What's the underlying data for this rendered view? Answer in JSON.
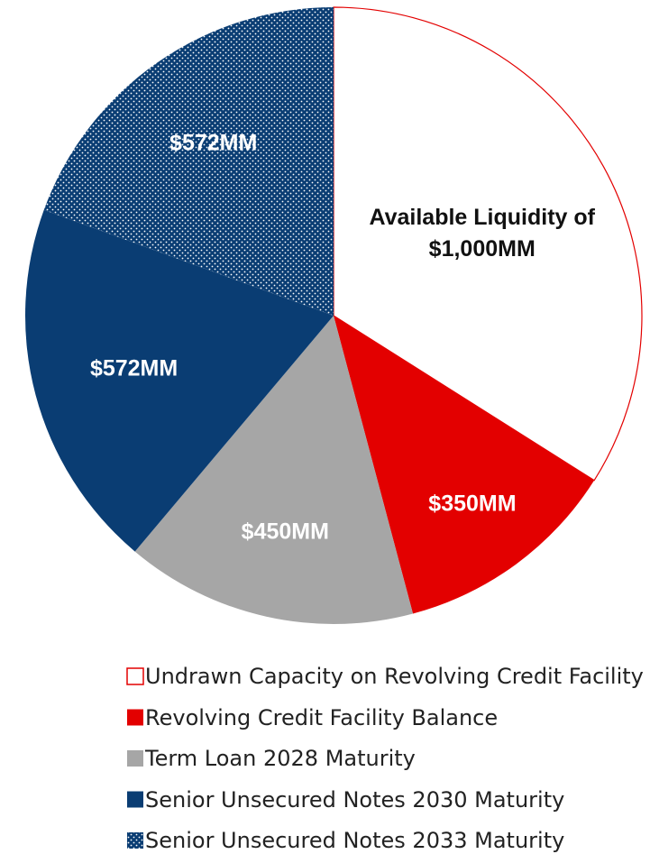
{
  "chart_data": {
    "type": "pie",
    "categories": [
      "Undrawn Capacity on Revolving Credit Facility",
      "Revolving Credit Facility Balance",
      "Term Loan 2028 Maturity",
      "Senior Unsecured Notes 2030 Maturity",
      "Senior Unsecured Notes 2033 Maturity"
    ],
    "values": [
      1000,
      350,
      450,
      572,
      572
    ],
    "value_labels": [
      "Available Liquidity of $1,000MM",
      "$350MM",
      "$450MM",
      "$572MM",
      "$572MM"
    ],
    "colors": [
      "#ffffff",
      "#e30000",
      "#a6a6a6",
      "#0a3d73",
      "#0a3d73"
    ],
    "patterns": [
      null,
      null,
      null,
      null,
      "dots"
    ],
    "outline": [
      "#e30000",
      null,
      null,
      null,
      null
    ],
    "legend": "bottom"
  }
}
